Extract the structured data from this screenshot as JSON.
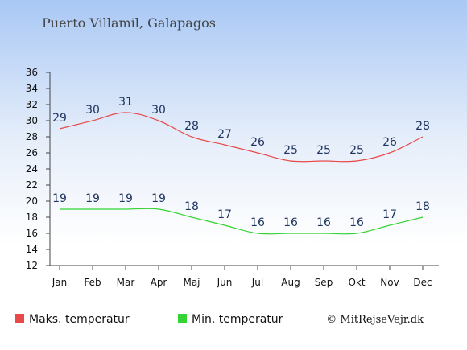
{
  "chart_data": {
    "type": "line",
    "title": "Puerto Villamil, Galapagos",
    "categories": [
      "Jan",
      "Feb",
      "Mar",
      "Apr",
      "Maj",
      "Jun",
      "Jul",
      "Aug",
      "Sep",
      "Okt",
      "Nov",
      "Dec"
    ],
    "series": [
      {
        "name": "Maks. temperatur",
        "color": "#e84a4a",
        "values": [
          29,
          30,
          31,
          30,
          28,
          27,
          26,
          25,
          25,
          25,
          26,
          28
        ]
      },
      {
        "name": "Min. temperatur",
        "color": "#33d433",
        "values": [
          19,
          19,
          19,
          19,
          18,
          17,
          16,
          16,
          16,
          16,
          17,
          18
        ]
      }
    ],
    "yticks": [
      12,
      14,
      16,
      18,
      20,
      22,
      24,
      26,
      28,
      30,
      32,
      34,
      36
    ],
    "ylim": [
      12,
      36
    ],
    "grid": false,
    "legend_placement": "bottom-left",
    "credit": "© MitRejseVejr.dk"
  }
}
